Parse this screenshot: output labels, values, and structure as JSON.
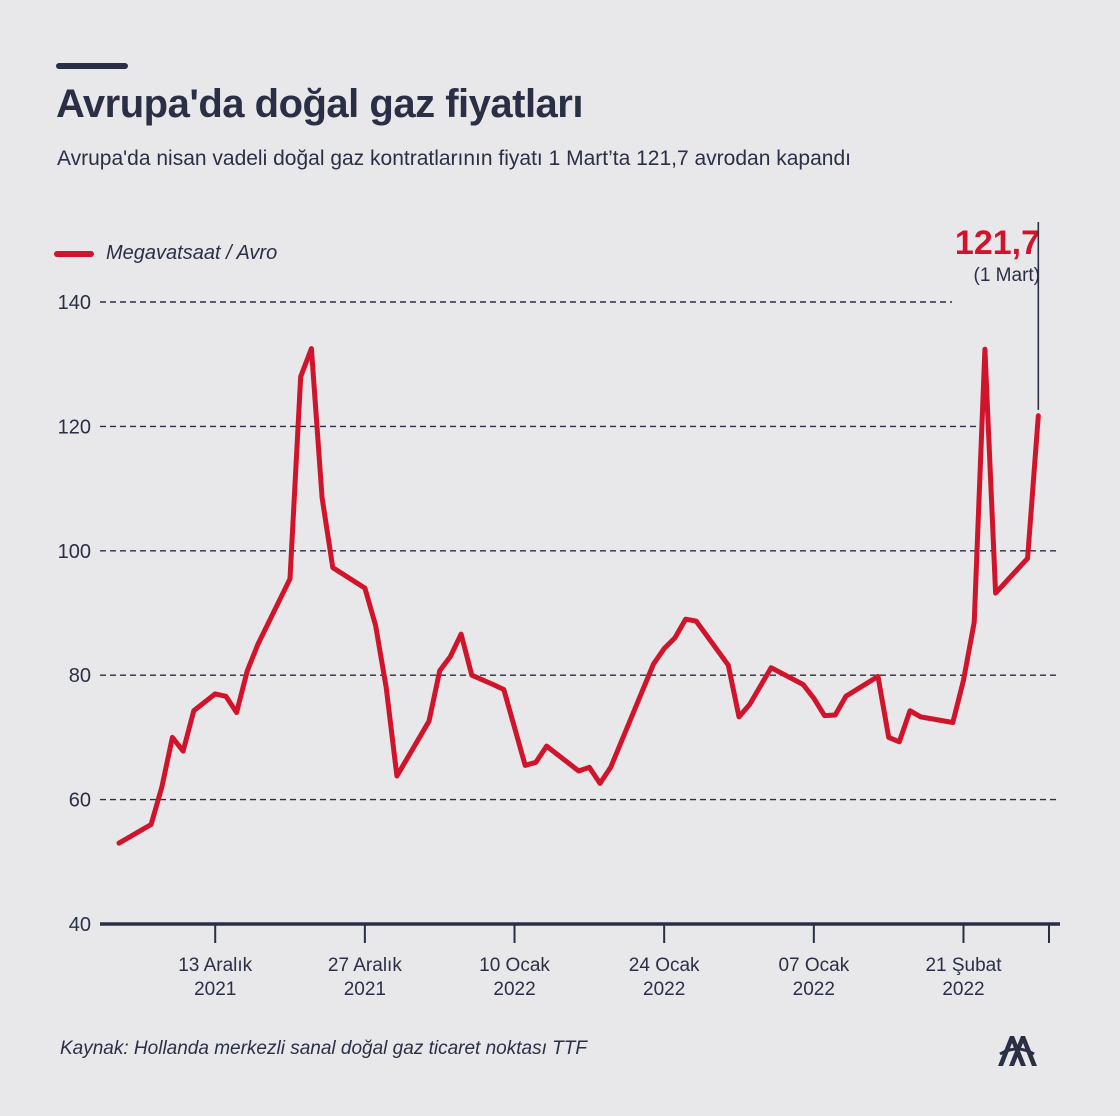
{
  "title": "Avrupa'da doğal gaz fiyatları",
  "subtitle": "Avrupa'da nisan vadeli doğal gaz kontratlarının fiyatı 1 Mart’ta 121,7 avrodan kapandı",
  "legend_label": "Megavatsaat / Avro",
  "callout": {
    "value": "121,7",
    "date": "(1 Mart)"
  },
  "source": "Kaynak: Hollanda merkezli sanal doğal gaz ticaret noktası TTF",
  "colors": {
    "line": "#d0142c",
    "text": "#2a2f45",
    "background": "#e8e8ea"
  },
  "logo_icon": "aa-logo-icon",
  "chart_data": {
    "type": "line",
    "ylim": [
      40,
      140
    ],
    "yticks": [
      40,
      60,
      80,
      100,
      120,
      140
    ],
    "y_tick_labels": [
      "40",
      "60",
      "80",
      "100",
      "120",
      "140"
    ],
    "grid": true,
    "x_ticks": [
      {
        "label1": "13 Aralık",
        "label2": "2021",
        "index": 10
      },
      {
        "label1": "27 Aralık",
        "label2": "2021",
        "index": 24
      },
      {
        "label1": "10 Ocak",
        "label2": "2022",
        "index": 38
      },
      {
        "label1": "24 Ocak",
        "label2": "2022",
        "index": 52
      },
      {
        "label1": "07 Ocak",
        "label2": "2022",
        "index": 66
      },
      {
        "label1": "21 Şubat",
        "label2": "2022",
        "index": 80
      },
      {
        "label1": "",
        "label2": "",
        "index": 88
      }
    ],
    "series": [
      {
        "name": "Megavatsaat / Avro",
        "values": [
          [
            1,
            53.0
          ],
          [
            3,
            55.0
          ],
          [
            4,
            56.0
          ],
          [
            5,
            62.0
          ],
          [
            6,
            70.0
          ],
          [
            7,
            67.8
          ],
          [
            8,
            74.3
          ],
          [
            10,
            77.0
          ],
          [
            11,
            76.6
          ],
          [
            12,
            74.0
          ],
          [
            13,
            80.7
          ],
          [
            14,
            85.0
          ],
          [
            17,
            95.5
          ],
          [
            18,
            128.0
          ],
          [
            19,
            132.5
          ],
          [
            20,
            108.5
          ],
          [
            21,
            97.3
          ],
          [
            24,
            94.0
          ],
          [
            25,
            88.0
          ],
          [
            26,
            78.0
          ],
          [
            27,
            63.8
          ],
          [
            30,
            72.6
          ],
          [
            31,
            80.7
          ],
          [
            32,
            83.0
          ],
          [
            33,
            86.6
          ],
          [
            34,
            80.0
          ],
          [
            36,
            78.5
          ],
          [
            37,
            77.7
          ],
          [
            39,
            65.5
          ],
          [
            40,
            66.0
          ],
          [
            41,
            68.6
          ],
          [
            44,
            64.6
          ],
          [
            45,
            65.2
          ],
          [
            46,
            62.6
          ],
          [
            47,
            65.2
          ],
          [
            51,
            81.8
          ],
          [
            52,
            84.3
          ],
          [
            53,
            86.0
          ],
          [
            54,
            89.0
          ],
          [
            55,
            88.7
          ],
          [
            58,
            81.6
          ],
          [
            59,
            73.3
          ],
          [
            60,
            75.3
          ],
          [
            62,
            81.2
          ],
          [
            65,
            78.5
          ],
          [
            66,
            76.3
          ],
          [
            67,
            73.5
          ],
          [
            68,
            73.6
          ],
          [
            69,
            76.6
          ],
          [
            72,
            79.8
          ],
          [
            73,
            70.0
          ],
          [
            74,
            69.3
          ],
          [
            75,
            74.3
          ],
          [
            76,
            73.3
          ],
          [
            79,
            72.4
          ],
          [
            80,
            79.2
          ],
          [
            81,
            88.5
          ],
          [
            82,
            132.4
          ],
          [
            83,
            93.2
          ],
          [
            86,
            98.8
          ],
          [
            87,
            121.7
          ]
        ]
      }
    ]
  }
}
